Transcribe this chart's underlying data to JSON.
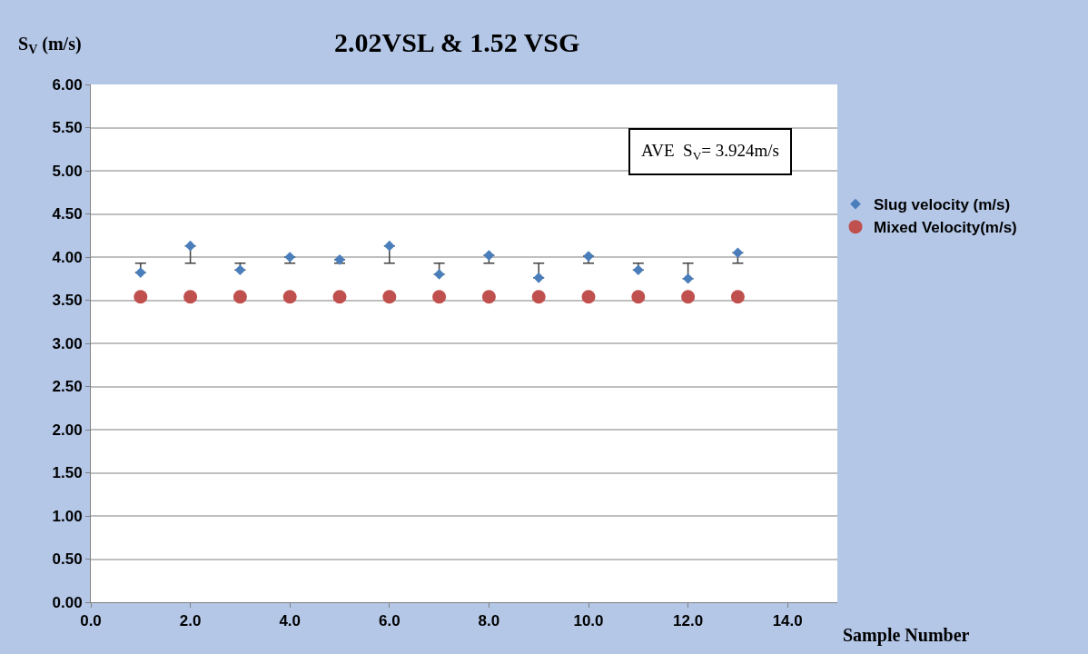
{
  "chart_data": {
    "type": "scatter",
    "title": "2.02VSL & 1.52 VSG",
    "xlabel": "Sample Number",
    "ylabel": "S$_{V}$ (m/s)",
    "x": [
      1,
      2,
      3,
      4,
      5,
      6,
      7,
      8,
      9,
      10,
      11,
      12,
      13
    ],
    "series": [
      {
        "name": "Slug velocity (m/s)",
        "color": "#4a7ebb",
        "marker": "diamond",
        "values": [
          3.82,
          4.13,
          3.85,
          4.0,
          3.97,
          4.13,
          3.8,
          4.02,
          3.76,
          4.01,
          3.85,
          3.75,
          4.05
        ],
        "errors": [
          [
            3.82,
            3.93
          ],
          [
            3.93,
            4.13
          ],
          [
            3.85,
            3.93
          ],
          [
            3.93,
            4.0
          ],
          [
            3.93,
            3.97
          ],
          [
            3.93,
            4.13
          ],
          [
            3.8,
            3.93
          ],
          [
            3.93,
            4.02
          ],
          [
            3.76,
            3.93
          ],
          [
            3.93,
            4.01
          ],
          [
            3.85,
            3.93
          ],
          [
            3.75,
            3.93
          ],
          [
            3.93,
            4.05
          ]
        ]
      },
      {
        "name": "Mixed Velocity(m/s)",
        "color": "#c0504d",
        "marker": "circle",
        "values": [
          3.54,
          3.54,
          3.54,
          3.54,
          3.54,
          3.54,
          3.54,
          3.54,
          3.54,
          3.54,
          3.54,
          3.54,
          3.54
        ]
      }
    ],
    "annotations": [
      "AVE  S$_{V}$= 3.924m/s"
    ],
    "xlim": [
      0,
      15
    ],
    "xticks": [
      {
        "value": 0,
        "label": "0.0"
      },
      {
        "value": 2,
        "label": "2.0"
      },
      {
        "value": 4,
        "label": "4.0"
      },
      {
        "value": 6,
        "label": "6.0"
      },
      {
        "value": 8,
        "label": "8.0"
      },
      {
        "value": 10,
        "label": "10.0"
      },
      {
        "value": 12,
        "label": "12.0"
      },
      {
        "value": 14,
        "label": "14.0"
      }
    ],
    "ylim": [
      0,
      6
    ],
    "yticks": [
      {
        "value": 0,
        "label": "0.00"
      },
      {
        "value": 0.5,
        "label": "0.50"
      },
      {
        "value": 1,
        "label": "1.00"
      },
      {
        "value": 1.5,
        "label": "1.50"
      },
      {
        "value": 2,
        "label": "2.00"
      },
      {
        "value": 2.5,
        "label": "2.50"
      },
      {
        "value": 3,
        "label": "3.00"
      },
      {
        "value": 3.5,
        "label": "3.50"
      },
      {
        "value": 4,
        "label": "4.00"
      },
      {
        "value": 4.5,
        "label": "4.50"
      },
      {
        "value": 5,
        "label": "5.00"
      },
      {
        "value": 5.5,
        "label": "5.50"
      },
      {
        "value": 6,
        "label": "6.00"
      }
    ],
    "grid": "y",
    "legend": "right"
  }
}
